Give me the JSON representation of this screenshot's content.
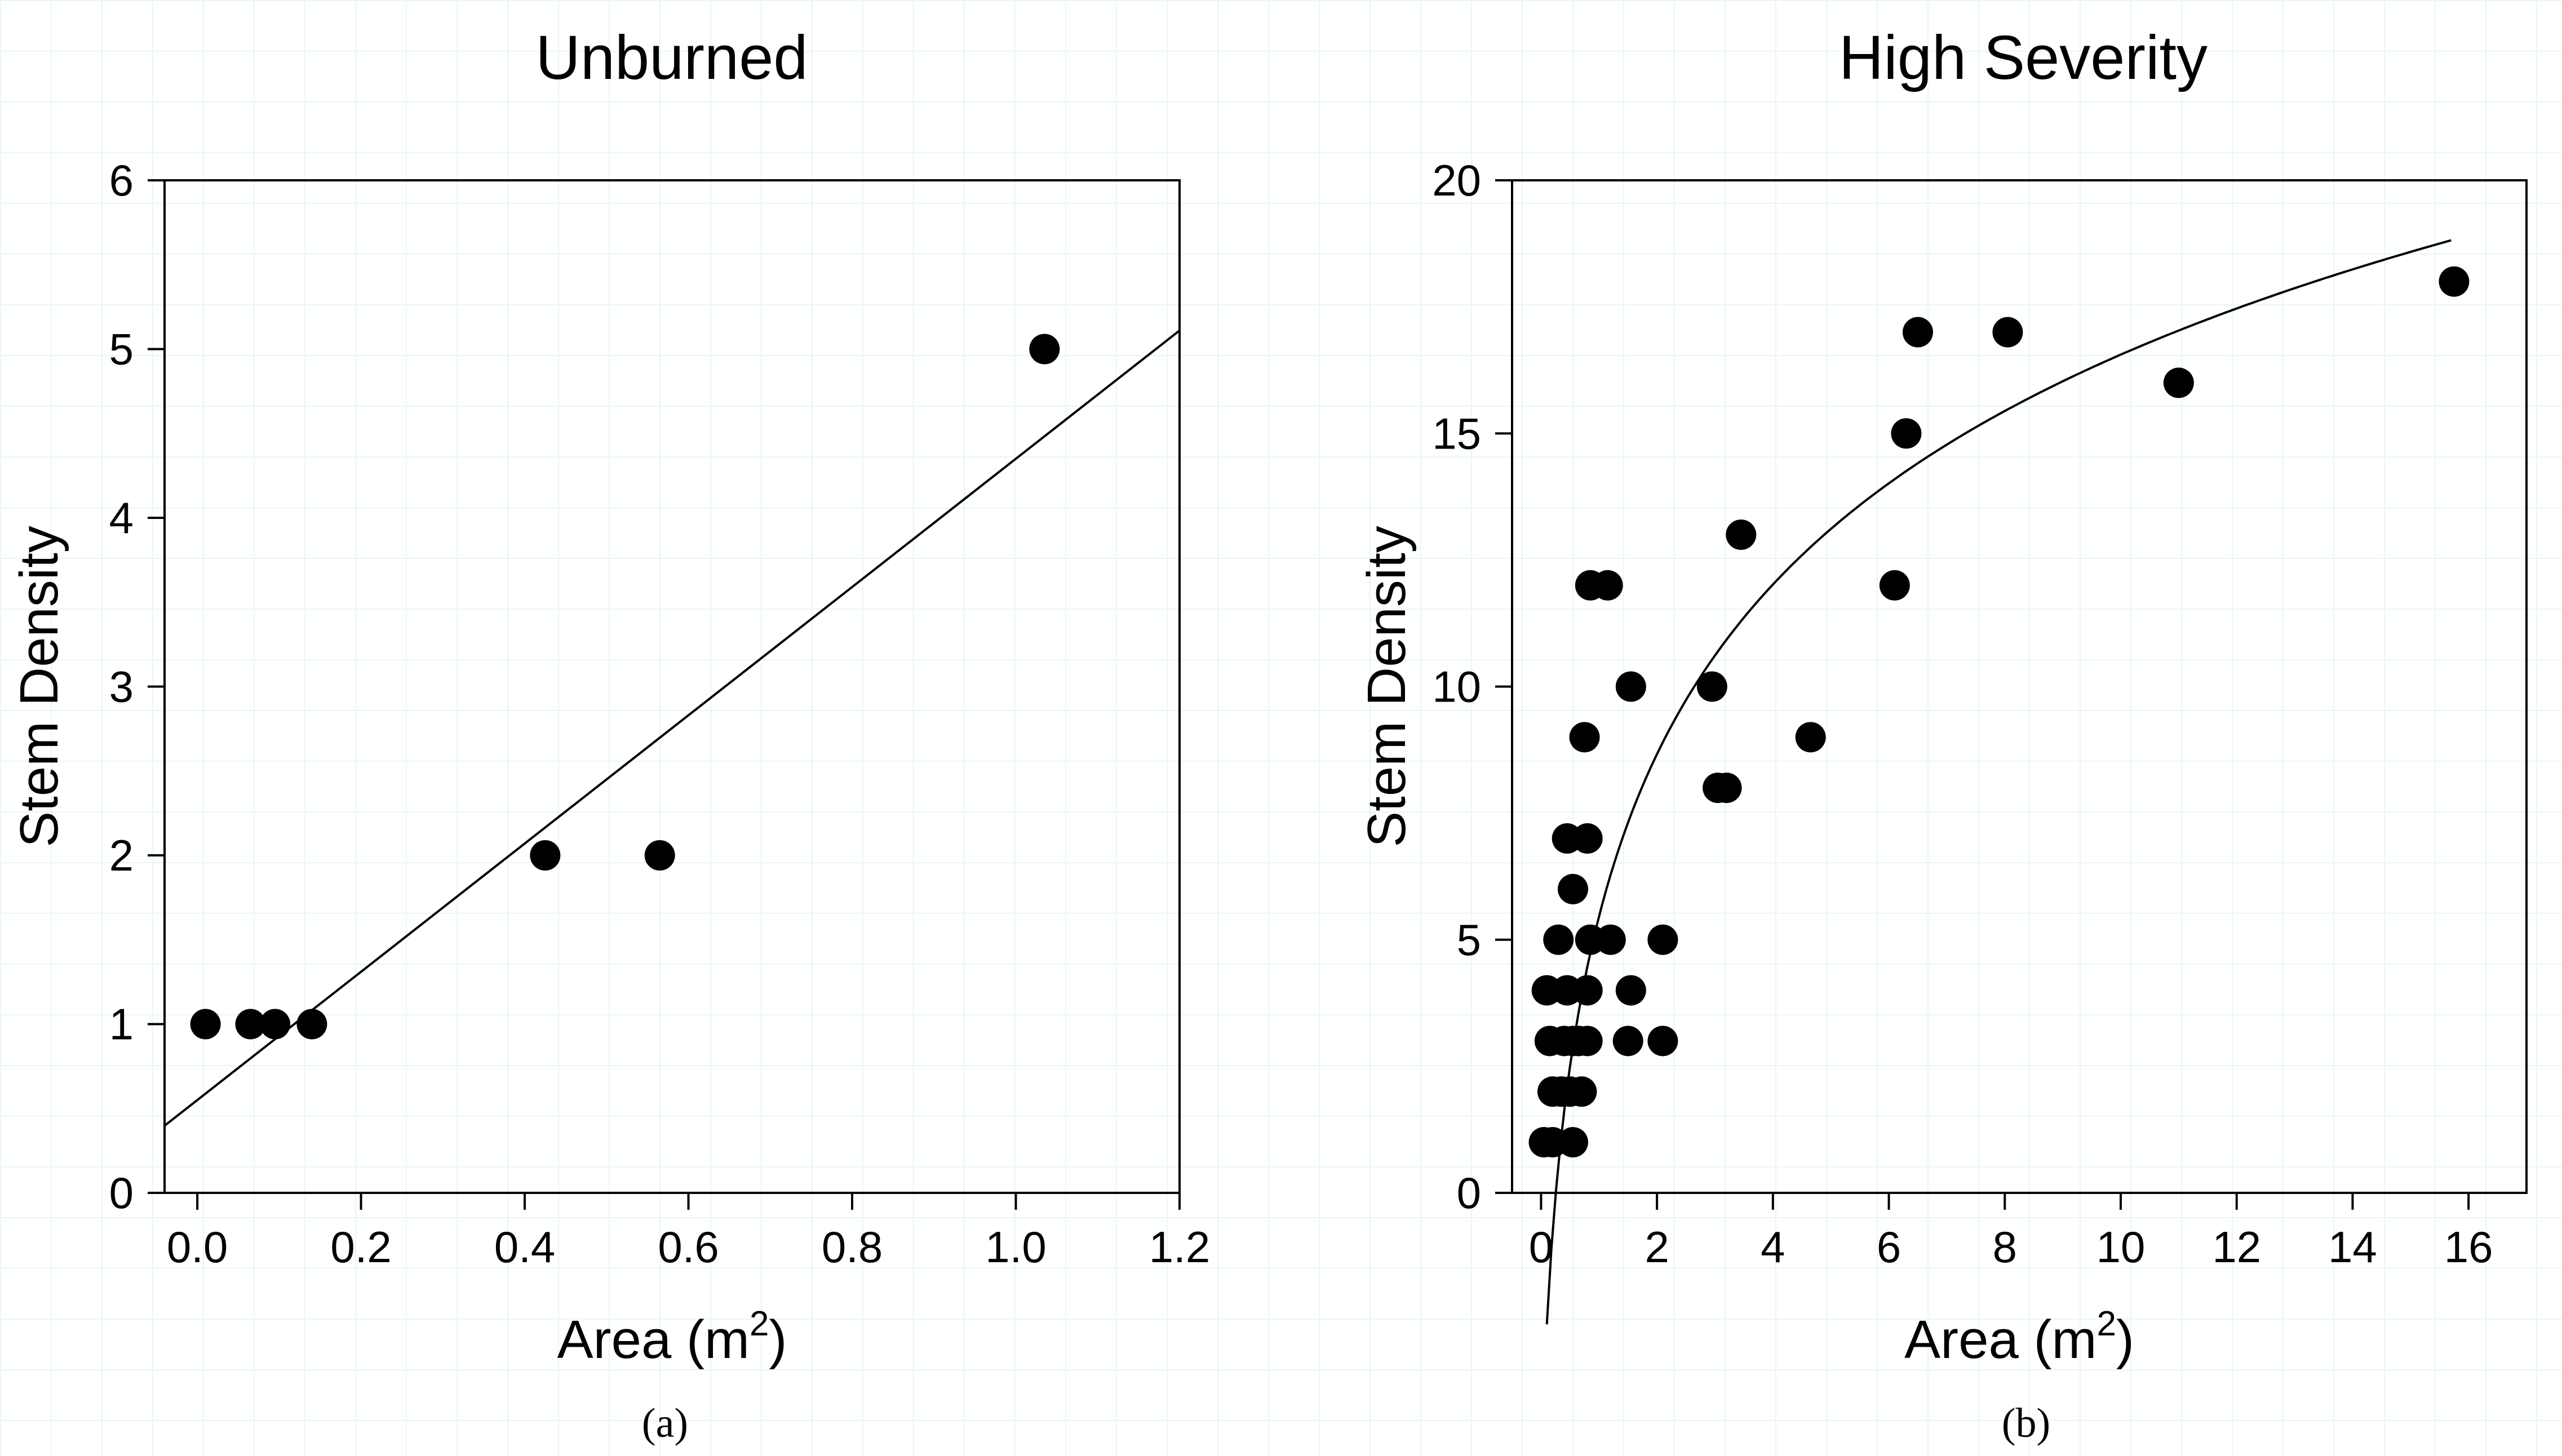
{
  "chart_data": [
    {
      "type": "scatter",
      "title": "Unburned",
      "xlabel": "Area (m",
      "xlabel_sup": "2",
      "xlabel_close": ")",
      "ylabel": "Stem Density",
      "caption": "(a)",
      "xlim": [
        -0.04,
        1.2
      ],
      "ylim": [
        0,
        6
      ],
      "xticks": [
        "0.0",
        "0.2",
        "0.4",
        "0.6",
        "0.8",
        "1.0",
        "1.2"
      ],
      "yticks": [
        "0",
        "1",
        "2",
        "3",
        "4",
        "5",
        "6"
      ],
      "points": [
        {
          "x": 0.01,
          "y": 1
        },
        {
          "x": 0.065,
          "y": 1
        },
        {
          "x": 0.095,
          "y": 1
        },
        {
          "x": 0.14,
          "y": 1
        },
        {
          "x": 0.425,
          "y": 2
        },
        {
          "x": 0.565,
          "y": 2
        },
        {
          "x": 1.035,
          "y": 5
        }
      ],
      "fit": {
        "model": "linear",
        "intercept": 0.55,
        "slope": 3.8
      },
      "grid": false
    },
    {
      "type": "scatter",
      "title": "High Severity",
      "xlabel": "Area (m",
      "xlabel_sup": "2",
      "xlabel_close": ")",
      "ylabel": "Stem Density",
      "caption": "(b)",
      "xlim": [
        -0.5,
        17
      ],
      "ylim": [
        0,
        20
      ],
      "xticks": [
        "0",
        "2",
        "4",
        "6",
        "8",
        "10",
        "12",
        "14",
        "16"
      ],
      "yticks": [
        "0",
        "5",
        "10",
        "15",
        "20"
      ],
      "points": [
        {
          "x": 0.05,
          "y": 1
        },
        {
          "x": 0.2,
          "y": 1
        },
        {
          "x": 0.55,
          "y": 1
        },
        {
          "x": 0.2,
          "y": 2
        },
        {
          "x": 0.35,
          "y": 2
        },
        {
          "x": 0.5,
          "y": 2
        },
        {
          "x": 0.7,
          "y": 2
        },
        {
          "x": 0.15,
          "y": 3
        },
        {
          "x": 0.4,
          "y": 3
        },
        {
          "x": 0.55,
          "y": 3
        },
        {
          "x": 0.65,
          "y": 3
        },
        {
          "x": 0.8,
          "y": 3
        },
        {
          "x": 1.5,
          "y": 3
        },
        {
          "x": 2.1,
          "y": 3
        },
        {
          "x": 0.1,
          "y": 4
        },
        {
          "x": 0.45,
          "y": 4
        },
        {
          "x": 0.8,
          "y": 4
        },
        {
          "x": 1.55,
          "y": 4
        },
        {
          "x": 0.3,
          "y": 5
        },
        {
          "x": 0.85,
          "y": 5
        },
        {
          "x": 1.2,
          "y": 5
        },
        {
          "x": 2.1,
          "y": 5
        },
        {
          "x": 0.55,
          "y": 6
        },
        {
          "x": 0.45,
          "y": 7
        },
        {
          "x": 0.8,
          "y": 7
        },
        {
          "x": 3.05,
          "y": 8
        },
        {
          "x": 3.2,
          "y": 8
        },
        {
          "x": 0.75,
          "y": 9
        },
        {
          "x": 4.65,
          "y": 9
        },
        {
          "x": 1.55,
          "y": 10
        },
        {
          "x": 2.95,
          "y": 10
        },
        {
          "x": 6.1,
          "y": 12
        },
        {
          "x": 0.85,
          "y": 12
        },
        {
          "x": 1.15,
          "y": 12
        },
        {
          "x": 3.45,
          "y": 13
        },
        {
          "x": 6.3,
          "y": 15
        },
        {
          "x": 6.5,
          "y": 17
        },
        {
          "x": 8.05,
          "y": 17
        },
        {
          "x": 11.0,
          "y": 16
        },
        {
          "x": 15.75,
          "y": 18
        }
      ],
      "fit": {
        "model": "logarithmic-like curve",
        "domain": [
          0.1,
          15.7
        ],
        "a": 5.06,
        "b": 4.84
      },
      "grid": false
    }
  ]
}
